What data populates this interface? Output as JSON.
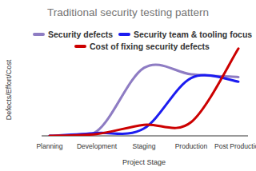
{
  "chart_data": {
    "type": "line",
    "title": "Traditional security testing pattern",
    "x_label": "Project Stage",
    "y_label": "Defects/Effort/Cost",
    "categories": [
      "Planning",
      "Development",
      "Staging",
      "Production",
      "Post Production"
    ],
    "series": [
      {
        "name": "Security defects",
        "color": "#8e7cc3",
        "values": [
          0,
          5,
          74,
          67,
          64
        ]
      },
      {
        "name": "Security team & tooling focus",
        "color": "#1c1cf0",
        "values": [
          0,
          3,
          8,
          63,
          59
        ]
      },
      {
        "name": "Cost of fixing security defects",
        "color": "#cc0000",
        "values": [
          0,
          2,
          12,
          15,
          95
        ]
      }
    ],
    "ylim": [
      0,
      100
    ],
    "grid": false,
    "legend": "top",
    "tick_labels": "x"
  }
}
